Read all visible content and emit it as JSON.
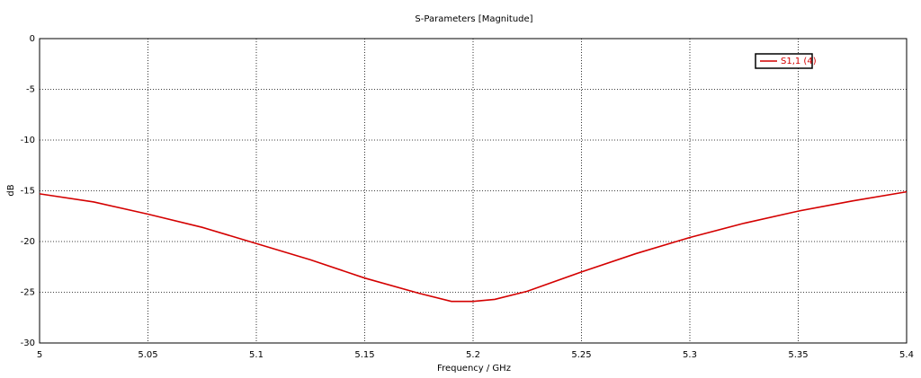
{
  "chart_data": {
    "type": "line",
    "title": "S-Parameters [Magnitude]",
    "x_label": "Frequency / GHz",
    "y_label": "dB",
    "x": [
      5.0,
      5.025,
      5.05,
      5.075,
      5.1,
      5.125,
      5.15,
      5.175,
      5.19,
      5.2,
      5.21,
      5.225,
      5.25,
      5.275,
      5.3,
      5.325,
      5.35,
      5.375,
      5.4
    ],
    "series": [
      {
        "name": "S1,1 (4)",
        "color": "#d40000",
        "values": [
          -15.3,
          -16.1,
          -17.3,
          -18.6,
          -20.2,
          -21.8,
          -23.6,
          -25.1,
          -25.9,
          -25.9,
          -25.7,
          -24.9,
          -23.0,
          -21.2,
          -19.6,
          -18.2,
          -17.0,
          -16.0,
          -15.1
        ]
      }
    ],
    "xlim": [
      5,
      5.4
    ],
    "xticks": [
      5,
      5.05,
      5.1,
      5.15,
      5.2,
      5.25,
      5.3,
      5.35,
      5.4
    ],
    "ylim": [
      -30,
      0
    ],
    "yticks": [
      0,
      -5,
      -10,
      -15,
      -20,
      -25,
      -30
    ],
    "grid": true,
    "legend": "top-right"
  }
}
